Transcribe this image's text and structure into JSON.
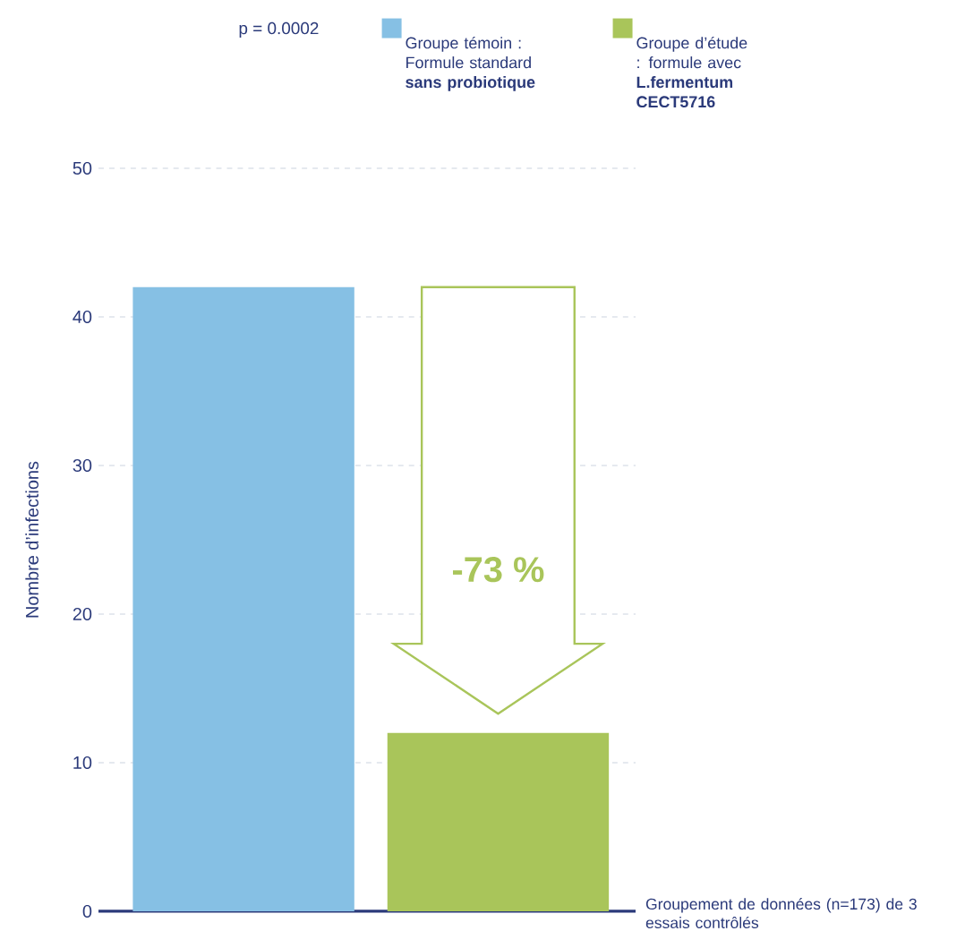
{
  "chart_data": {
    "type": "bar",
    "categories": [
      null,
      null
    ],
    "series": [
      {
        "name": "Groupe témoin : Formule standard **sans probiotique**",
        "color": "#86c0e4",
        "values": [
          42,
          null
        ]
      },
      {
        "name": "Groupe d’étude : formule avec **L.fermentum CECT5716**",
        "color": "#a9c55a",
        "values": [
          null,
          12
        ]
      }
    ],
    "xlabel": "Groupement de données (n=173) de 3 essais contrôlés",
    "ylabel": "Nombre d’infections",
    "ylim": [
      0,
      50
    ],
    "yticks": [
      0,
      10,
      20,
      30,
      40,
      50
    ],
    "grid": "y",
    "legend": "top",
    "annotations": [
      "p = 0.0002",
      "-73 %"
    ]
  }
}
